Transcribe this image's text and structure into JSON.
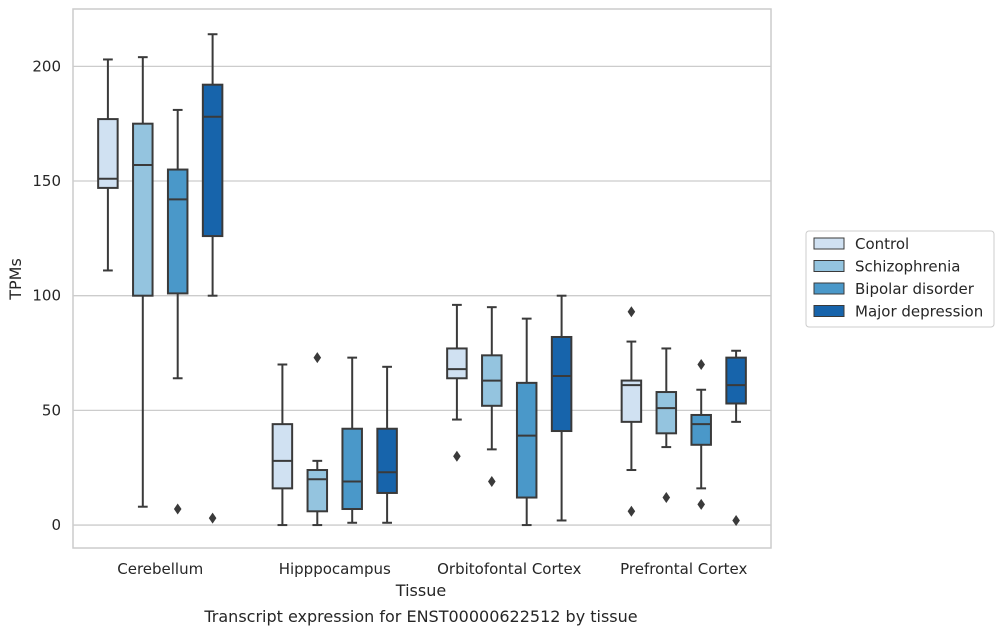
{
  "chart_data": {
    "type": "box",
    "title": "",
    "caption": "Transcript expression for ENST00000622512 by tissue",
    "xlabel": "Tissue",
    "ylabel": "TPMs",
    "ylim": [
      -10,
      225
    ],
    "yticks": [
      0,
      50,
      100,
      150,
      200
    ],
    "grid": "horizontal",
    "legend_position": "right",
    "categories": [
      "Cerebellum",
      "Hipppocampus",
      "Orbitofontal Cortex",
      "Prefrontal Cortex"
    ],
    "series": [
      {
        "name": "Control",
        "color": "#d0e1f2",
        "boxes": [
          {
            "whisker_low": 111,
            "q1": 147,
            "median": 151,
            "q3": 177,
            "whisker_high": 203,
            "outliers": []
          },
          {
            "whisker_low": 0,
            "q1": 16,
            "median": 28,
            "q3": 44,
            "whisker_high": 70,
            "outliers": []
          },
          {
            "whisker_low": 46,
            "q1": 64,
            "median": 68,
            "q3": 77,
            "whisker_high": 96,
            "outliers": [
              30
            ]
          },
          {
            "whisker_low": 24,
            "q1": 45,
            "median": 61,
            "q3": 63,
            "whisker_high": 80,
            "outliers": [
              93,
              6
            ]
          }
        ]
      },
      {
        "name": "Schizophrenia",
        "color": "#94c4df",
        "boxes": [
          {
            "whisker_low": 8,
            "q1": 100,
            "median": 157,
            "q3": 175,
            "whisker_high": 204,
            "outliers": []
          },
          {
            "whisker_low": 0,
            "q1": 6,
            "median": 20,
            "q3": 24,
            "whisker_high": 28,
            "outliers": [
              73
            ]
          },
          {
            "whisker_low": 33,
            "q1": 52,
            "median": 63,
            "q3": 74,
            "whisker_high": 95,
            "outliers": [
              19
            ]
          },
          {
            "whisker_low": 34,
            "q1": 40,
            "median": 51,
            "q3": 58,
            "whisker_high": 77,
            "outliers": [
              12
            ]
          }
        ]
      },
      {
        "name": "Bipolar disorder",
        "color": "#4a98c9",
        "boxes": [
          {
            "whisker_low": 64,
            "q1": 101,
            "median": 142,
            "q3": 155,
            "whisker_high": 181,
            "outliers": [
              7
            ]
          },
          {
            "whisker_low": 1,
            "q1": 7,
            "median": 19,
            "q3": 42,
            "whisker_high": 73,
            "outliers": []
          },
          {
            "whisker_low": 0,
            "q1": 12,
            "median": 39,
            "q3": 62,
            "whisker_high": 90,
            "outliers": []
          },
          {
            "whisker_low": 16,
            "q1": 35,
            "median": 44,
            "q3": 48,
            "whisker_high": 59,
            "outliers": [
              70,
              9
            ]
          }
        ]
      },
      {
        "name": "Major depression",
        "color": "#1764ab",
        "boxes": [
          {
            "whisker_low": 100,
            "q1": 126,
            "median": 178,
            "q3": 192,
            "whisker_high": 214,
            "outliers": [
              3
            ]
          },
          {
            "whisker_low": 1,
            "q1": 14,
            "median": 23,
            "q3": 42,
            "whisker_high": 69,
            "outliers": []
          },
          {
            "whisker_low": 2,
            "q1": 41,
            "median": 65,
            "q3": 82,
            "whisker_high": 100,
            "outliers": []
          },
          {
            "whisker_low": 45,
            "q1": 53,
            "median": 61,
            "q3": 73,
            "whisker_high": 76,
            "outliers": [
              2
            ]
          }
        ]
      }
    ]
  }
}
